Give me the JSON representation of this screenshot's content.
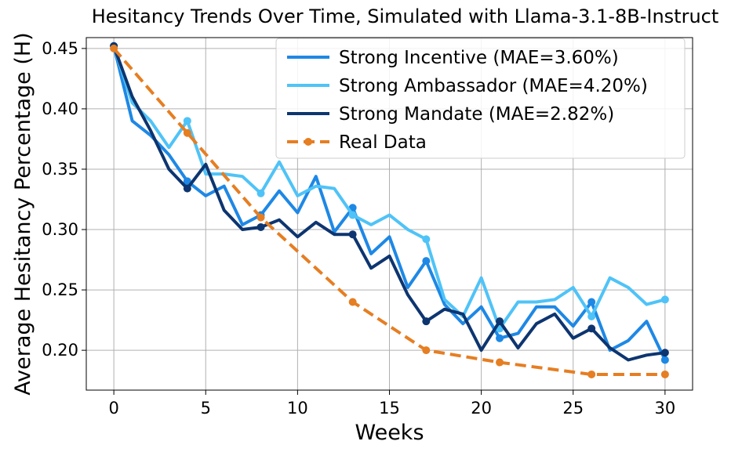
{
  "chart_data": {
    "type": "line",
    "title": "Hesitancy Trends Over Time, Simulated with Llama-3.1-8B-Instruct",
    "xlabel": "Weeks",
    "ylabel": "Average Hesitancy Percentage (H)",
    "xlim": [
      -1.5,
      31.5
    ],
    "ylim": [
      0.167,
      0.459
    ],
    "xticks": [
      0,
      5,
      10,
      15,
      20,
      25,
      30
    ],
    "yticks": [
      0.2,
      0.25,
      0.3,
      0.35,
      0.4,
      0.45
    ],
    "xtick_labels": [
      "0",
      "5",
      "10",
      "15",
      "20",
      "25",
      "30"
    ],
    "ytick_labels": [
      "0.20",
      "0.25",
      "0.30",
      "0.35",
      "0.40",
      "0.45"
    ],
    "grid": true,
    "legend_position": "top-right",
    "series": [
      {
        "name": "Strong Incentive (MAE=3.60%)",
        "color": "#1e88e5",
        "style": "solid",
        "x": [
          0,
          1,
          2,
          3,
          4,
          5,
          6,
          7,
          8,
          9,
          10,
          11,
          12,
          13,
          14,
          15,
          16,
          17,
          18,
          19,
          20,
          21,
          22,
          23,
          24,
          25,
          26,
          27,
          28,
          29,
          30
        ],
        "values": [
          0.452,
          0.39,
          0.378,
          0.362,
          0.34,
          0.328,
          0.336,
          0.304,
          0.312,
          0.332,
          0.314,
          0.344,
          0.298,
          0.318,
          0.28,
          0.294,
          0.252,
          0.274,
          0.238,
          0.222,
          0.236,
          0.21,
          0.214,
          0.236,
          0.236,
          0.22,
          0.24,
          0.2,
          0.208,
          0.224,
          0.192
        ],
        "markers": [
          0,
          4,
          8,
          13,
          17,
          21,
          26,
          30
        ]
      },
      {
        "name": "Strong Ambassador (MAE=4.20%)",
        "color": "#4fc3f7",
        "style": "solid",
        "x": [
          0,
          1,
          2,
          3,
          4,
          5,
          6,
          7,
          8,
          9,
          10,
          11,
          12,
          13,
          14,
          15,
          16,
          17,
          18,
          19,
          20,
          21,
          22,
          23,
          24,
          25,
          26,
          27,
          28,
          29,
          30
        ],
        "values": [
          0.452,
          0.405,
          0.39,
          0.368,
          0.39,
          0.346,
          0.346,
          0.344,
          0.33,
          0.356,
          0.328,
          0.336,
          0.334,
          0.312,
          0.304,
          0.312,
          0.3,
          0.292,
          0.242,
          0.228,
          0.26,
          0.218,
          0.24,
          0.24,
          0.242,
          0.252,
          0.228,
          0.26,
          0.252,
          0.238,
          0.242
        ],
        "markers": [
          0,
          4,
          8,
          13,
          17,
          21,
          26,
          30
        ]
      },
      {
        "name": "Strong Mandate (MAE=2.82%)",
        "color": "#0d3570",
        "style": "solid",
        "x": [
          0,
          1,
          2,
          3,
          4,
          5,
          6,
          7,
          8,
          9,
          10,
          11,
          12,
          13,
          14,
          15,
          16,
          17,
          18,
          19,
          20,
          21,
          22,
          23,
          24,
          25,
          26,
          27,
          28,
          29,
          30
        ],
        "values": [
          0.452,
          0.41,
          0.382,
          0.35,
          0.334,
          0.354,
          0.316,
          0.3,
          0.302,
          0.308,
          0.294,
          0.306,
          0.296,
          0.296,
          0.268,
          0.278,
          0.246,
          0.224,
          0.234,
          0.23,
          0.2,
          0.224,
          0.202,
          0.222,
          0.23,
          0.21,
          0.218,
          0.202,
          0.192,
          0.196,
          0.198
        ],
        "markers": [
          0,
          4,
          8,
          13,
          17,
          21,
          26,
          30
        ]
      },
      {
        "name": "Real Data",
        "color": "#e67e22",
        "style": "dashed",
        "x": [
          0,
          4,
          8,
          13,
          17,
          21,
          26,
          30
        ],
        "values": [
          0.45,
          0.38,
          0.31,
          0.24,
          0.2,
          0.19,
          0.18,
          0.18
        ],
        "markers": [
          0,
          4,
          8,
          13,
          17,
          21,
          26,
          30
        ]
      }
    ]
  }
}
